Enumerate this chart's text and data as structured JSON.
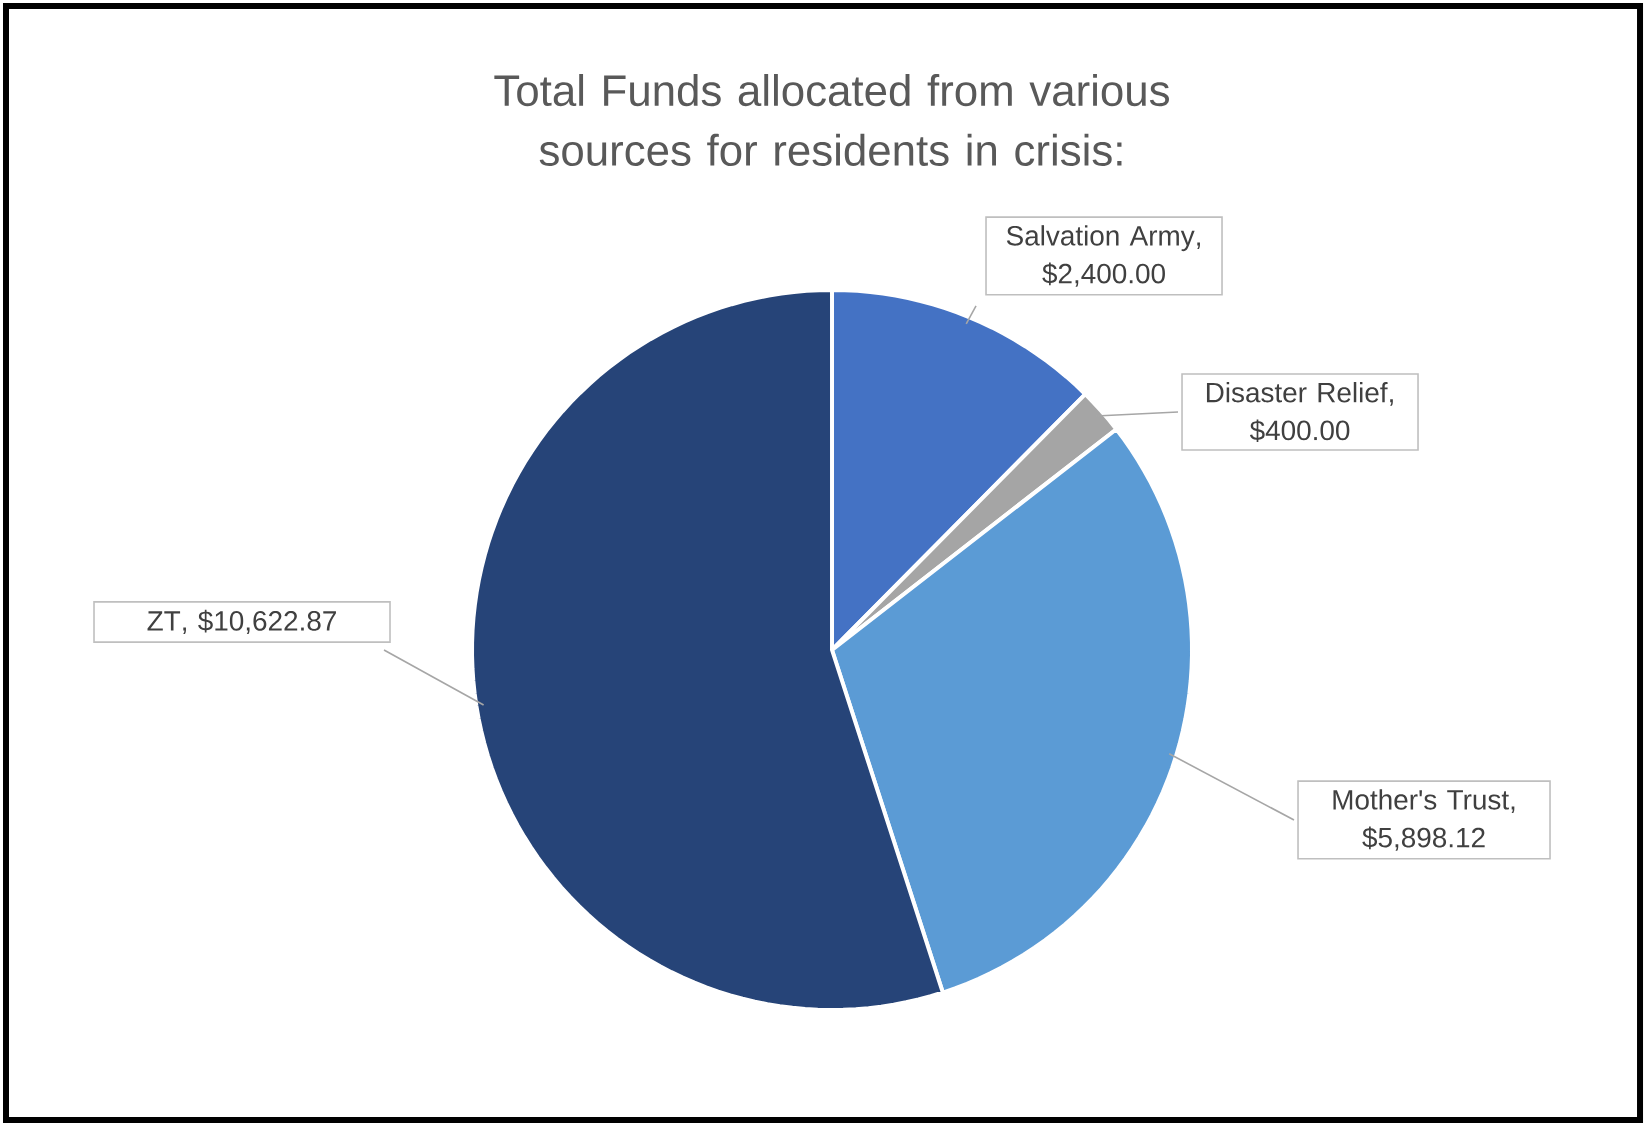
{
  "chart_data": {
    "type": "pie",
    "title": "Total Funds allocated from various sources for residents in crisis:",
    "categories": [
      "Salvation Army",
      "Disaster Relief",
      "Mother's Trust",
      "ZT"
    ],
    "values": [
      2400,
      400,
      5898.12,
      10622.87
    ],
    "value_labels": [
      ", $2,400.00",
      ", $400.00",
      ", $5,898.12",
      ",  $10,622.87"
    ],
    "colors": [
      "#4472c4",
      "#a5a5a5",
      "#5b9bd5",
      "#264478"
    ]
  }
}
